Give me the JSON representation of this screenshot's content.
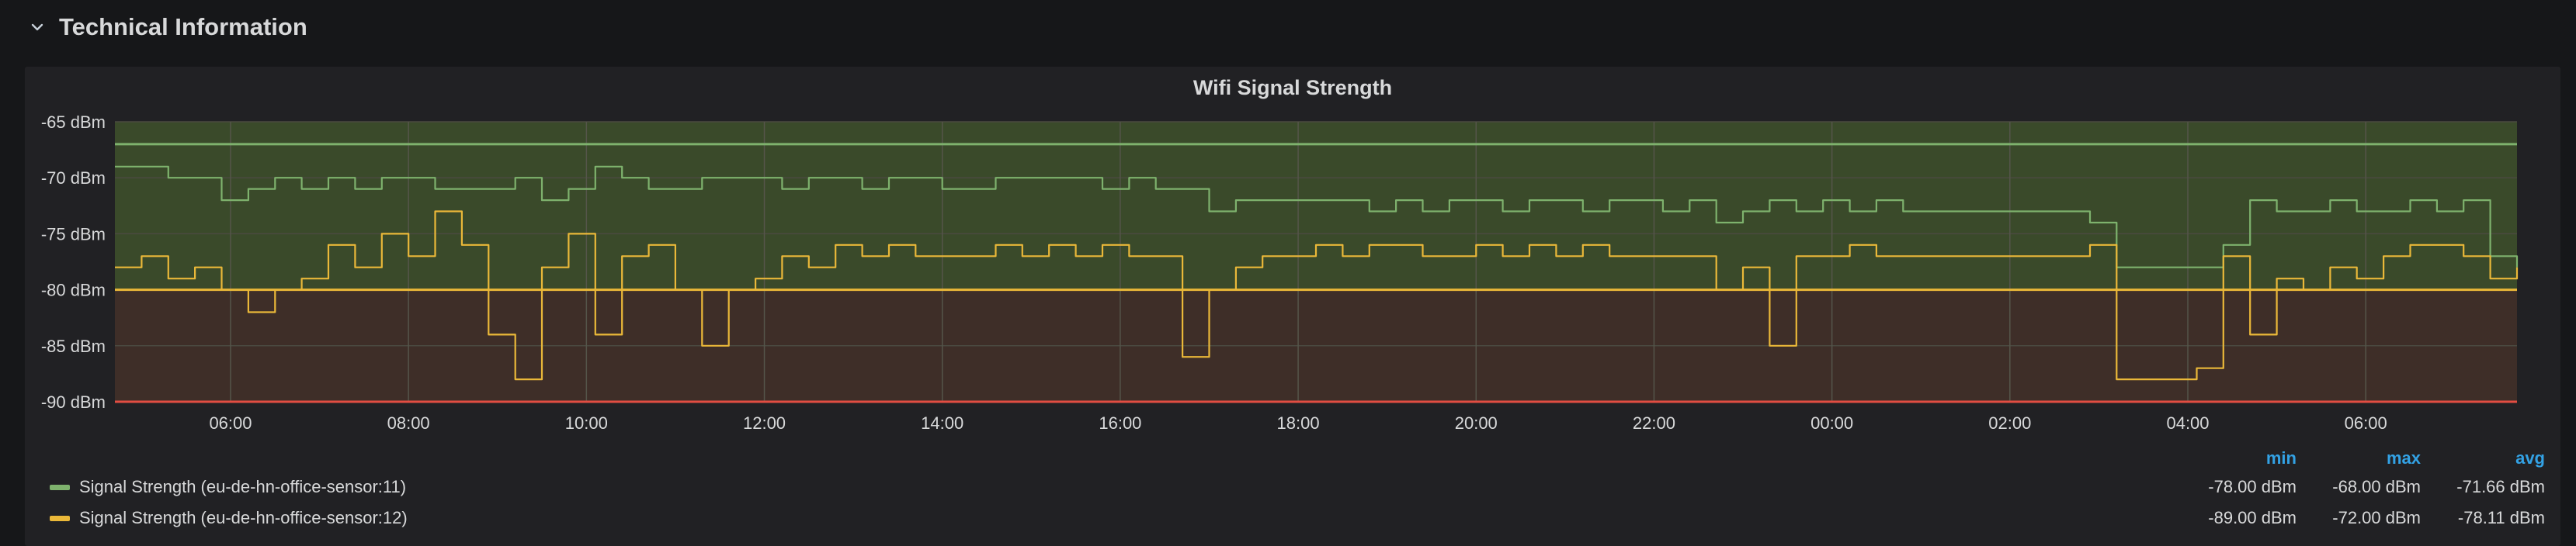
{
  "row": {
    "title": "Technical Information",
    "icon": "chevron-down-icon"
  },
  "panel": {
    "title": "Wifi Signal Strength"
  },
  "legend": {
    "columns": [
      "min",
      "max",
      "avg"
    ],
    "rows": [
      {
        "name": "Signal Strength (eu-de-hn-office-sensor:11)",
        "color": "#7eb26d",
        "min": "-78.00 dBm",
        "max": "-68.00 dBm",
        "avg": "-71.66 dBm"
      },
      {
        "name": "Signal Strength (eu-de-hn-office-sensor:12)",
        "color": "#eab839",
        "min": "-89.00 dBm",
        "max": "-72.00 dBm",
        "avg": "-78.11 dBm"
      }
    ]
  },
  "chart_data": {
    "type": "line",
    "title": "Wifi Signal Strength",
    "xlabel": "",
    "ylabel": "",
    "unit": "dBm",
    "xlim": [
      4.7,
      31.7
    ],
    "ylim": [
      -90,
      -65
    ],
    "x_ticks": [
      "06:00",
      "08:00",
      "10:00",
      "12:00",
      "14:00",
      "16:00",
      "18:00",
      "20:00",
      "22:00",
      "00:00",
      "02:00",
      "04:00",
      "06:00"
    ],
    "x_tick_hours": [
      6,
      8,
      10,
      12,
      14,
      16,
      18,
      20,
      22,
      24,
      26,
      28,
      30
    ],
    "y_ticks": [
      -65,
      -70,
      -75,
      -80,
      -85,
      -90
    ],
    "y_tick_labels": [
      "-65 dBm",
      "-70 dBm",
      "-75 dBm",
      "-80 dBm",
      "-85 dBm",
      "-90 dBm"
    ],
    "grid": true,
    "thresholds": [
      {
        "value": -67,
        "color": "#7eb26d",
        "region": "above -80",
        "fill": "#3a4a2a"
      },
      {
        "value": -80,
        "color": "#eab839",
        "region": "-80 to -90",
        "fill": "#3e2e28"
      },
      {
        "value": -90,
        "color": "#e24d42"
      }
    ],
    "series": [
      {
        "name": "Signal Strength (eu-de-hn-office-sensor:11)",
        "color": "#7eb26d",
        "x": [
          4.7,
          5.0,
          5.3,
          5.6,
          5.9,
          6.2,
          6.5,
          6.8,
          7.1,
          7.4,
          7.7,
          8.0,
          8.3,
          8.6,
          8.9,
          9.2,
          9.5,
          9.8,
          10.1,
          10.4,
          10.7,
          11.0,
          11.3,
          11.6,
          11.9,
          12.2,
          12.5,
          12.8,
          13.1,
          13.4,
          13.7,
          14.0,
          14.3,
          14.6,
          14.9,
          15.2,
          15.5,
          15.8,
          16.1,
          16.4,
          16.7,
          17.0,
          17.3,
          17.6,
          17.9,
          18.2,
          18.5,
          18.8,
          19.1,
          19.4,
          19.7,
          20.0,
          20.3,
          20.6,
          20.9,
          21.2,
          21.5,
          21.8,
          22.1,
          22.4,
          22.7,
          23.0,
          23.3,
          23.6,
          23.9,
          24.2,
          24.5,
          24.8,
          25.1,
          25.4,
          25.7,
          26.0,
          26.3,
          26.6,
          26.9,
          27.2,
          27.5,
          27.8,
          28.1,
          28.4,
          28.7,
          29.0,
          29.3,
          29.6,
          29.9,
          30.2,
          30.5,
          30.8,
          31.1,
          31.4,
          31.7
        ],
        "values": [
          -69,
          -69,
          -70,
          -70,
          -72,
          -71,
          -70,
          -71,
          -70,
          -71,
          -70,
          -70,
          -71,
          -71,
          -71,
          -70,
          -72,
          -71,
          -69,
          -70,
          -71,
          -71,
          -70,
          -70,
          -70,
          -71,
          -70,
          -70,
          -71,
          -70,
          -70,
          -71,
          -71,
          -70,
          -70,
          -70,
          -70,
          -71,
          -70,
          -71,
          -71,
          -73,
          -72,
          -72,
          -72,
          -72,
          -72,
          -73,
          -72,
          -73,
          -72,
          -72,
          -73,
          -72,
          -72,
          -73,
          -72,
          -72,
          -73,
          -72,
          -74,
          -73,
          -72,
          -73,
          -72,
          -73,
          -72,
          -73,
          -73,
          -73,
          -73,
          -73,
          -73,
          -73,
          -74,
          -78,
          -78,
          -78,
          -78,
          -76,
          -72,
          -73,
          -73,
          -72,
          -73,
          -73,
          -72,
          -73,
          -72,
          -77,
          -78
        ]
      },
      {
        "name": "Signal Strength (eu-de-hn-office-sensor:12)",
        "color": "#eab839",
        "x": [
          4.7,
          5.0,
          5.3,
          5.6,
          5.9,
          6.2,
          6.5,
          6.8,
          7.1,
          7.4,
          7.7,
          8.0,
          8.3,
          8.6,
          8.9,
          9.2,
          9.5,
          9.8,
          10.1,
          10.4,
          10.7,
          11.0,
          11.3,
          11.6,
          11.9,
          12.2,
          12.5,
          12.8,
          13.1,
          13.4,
          13.7,
          14.0,
          14.3,
          14.6,
          14.9,
          15.2,
          15.5,
          15.8,
          16.1,
          16.4,
          16.7,
          17.0,
          17.3,
          17.6,
          17.9,
          18.2,
          18.5,
          18.8,
          19.1,
          19.4,
          19.7,
          20.0,
          20.3,
          20.6,
          20.9,
          21.2,
          21.5,
          21.8,
          22.1,
          22.4,
          22.7,
          23.0,
          23.3,
          23.6,
          23.9,
          24.2,
          24.5,
          24.8,
          25.1,
          25.4,
          25.7,
          26.0,
          26.3,
          26.6,
          26.9,
          27.2,
          27.5,
          27.8,
          28.1,
          28.4,
          28.7,
          29.0,
          29.3,
          29.6,
          29.9,
          30.2,
          30.5,
          30.8,
          31.1,
          31.4,
          31.7
        ],
        "values": [
          -78,
          -77,
          -79,
          -78,
          -80,
          -82,
          -80,
          -79,
          -76,
          -78,
          -75,
          -77,
          -73,
          -76,
          -84,
          -88,
          -78,
          -75,
          -84,
          -77,
          -76,
          -80,
          -85,
          -80,
          -79,
          -77,
          -78,
          -76,
          -77,
          -76,
          -77,
          -77,
          -77,
          -76,
          -77,
          -76,
          -77,
          -76,
          -77,
          -77,
          -86,
          -80,
          -78,
          -77,
          -77,
          -76,
          -77,
          -76,
          -76,
          -77,
          -77,
          -76,
          -77,
          -76,
          -77,
          -76,
          -77,
          -77,
          -77,
          -77,
          -80,
          -78,
          -85,
          -77,
          -77,
          -76,
          -77,
          -77,
          -77,
          -77,
          -77,
          -77,
          -77,
          -77,
          -76,
          -88,
          -88,
          -88,
          -87,
          -77,
          -84,
          -79,
          -80,
          -78,
          -79,
          -77,
          -76,
          -76,
          -77,
          -79,
          -78
        ]
      }
    ]
  }
}
